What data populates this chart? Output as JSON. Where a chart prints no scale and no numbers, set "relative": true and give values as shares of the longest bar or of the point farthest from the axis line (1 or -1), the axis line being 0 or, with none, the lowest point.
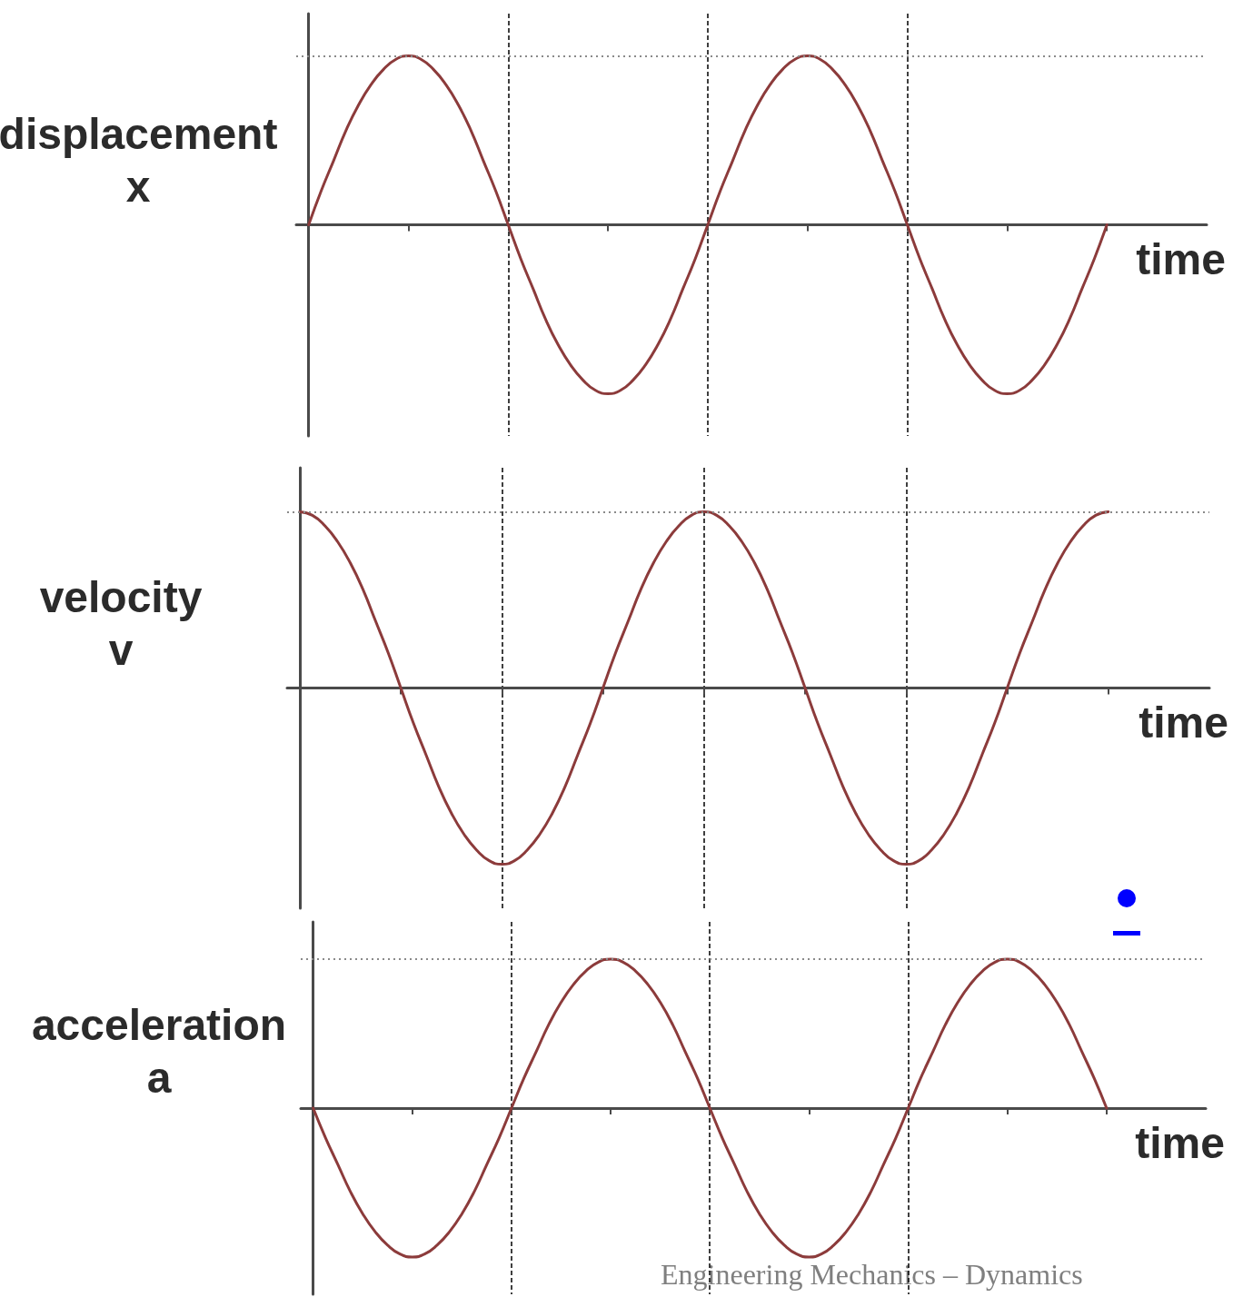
{
  "chart_data": [
    {
      "type": "line",
      "relative": true,
      "tick_labels": false,
      "grid": "x",
      "xlabel": "time",
      "ylabel": "displacement\nx",
      "categories": [
        null,
        null,
        null,
        null,
        null,
        null,
        null,
        null,
        null,
        null,
        null,
        null,
        null,
        null,
        null,
        null,
        null,
        null,
        null,
        null,
        null,
        null,
        null,
        null,
        null,
        null,
        null,
        null,
        null,
        null,
        null,
        null,
        null,
        null,
        null,
        null,
        null,
        null,
        null,
        null,
        null,
        null,
        null,
        null,
        null,
        null,
        null,
        null,
        null,
        null,
        null,
        null,
        null,
        null,
        null,
        null,
        null,
        null,
        null,
        null,
        null,
        null,
        null,
        null,
        null,
        null,
        null,
        null,
        null,
        null,
        null,
        null,
        null,
        null
      ],
      "series": [
        {
          "color": "#8c3b3b",
          "values": [
            null,
            0,
            0.2,
            0.38,
            0.56,
            0.71,
            0.83,
            0.92,
            0.98,
            1,
            0.98,
            0.92,
            0.83,
            0.71,
            0.56,
            0.38,
            0.2,
            0,
            -0.2,
            -0.38,
            -0.56,
            -0.71,
            -0.83,
            -0.92,
            -0.98,
            -1,
            -0.98,
            -0.92,
            -0.83,
            -0.71,
            -0.56,
            -0.38,
            -0.2,
            0,
            0.2,
            0.38,
            0.56,
            0.71,
            0.83,
            0.92,
            0.98,
            1,
            0.98,
            0.92,
            0.83,
            0.71,
            0.56,
            0.38,
            0.2,
            0,
            -0.2,
            -0.38,
            -0.56,
            -0.71,
            -0.83,
            -0.92,
            -0.98,
            -1,
            -0.98,
            -0.92,
            -0.83,
            -0.71,
            -0.56,
            -0.38,
            -0.2,
            0,
            null,
            null,
            null,
            null,
            null,
            null,
            null,
            null
          ]
        }
      ],
      "ref_lines": [
        {
          "axis": "y",
          "value": 1,
          "color": "#8a8a8a",
          "line_style": "dotted"
        }
      ]
    },
    {
      "type": "line",
      "relative": true,
      "tick_labels": false,
      "grid": "x",
      "xlabel": "time",
      "ylabel": "velocity\nv",
      "categories": [
        null,
        null,
        null,
        null,
        null,
        null,
        null,
        null,
        null,
        null,
        null,
        null,
        null,
        null,
        null,
        null,
        null,
        null,
        null,
        null,
        null,
        null,
        null,
        null,
        null,
        null,
        null,
        null,
        null,
        null,
        null,
        null,
        null,
        null,
        null,
        null,
        null,
        null,
        null,
        null,
        null,
        null,
        null,
        null,
        null,
        null,
        null,
        null,
        null,
        null,
        null,
        null,
        null,
        null,
        null,
        null,
        null,
        null,
        null,
        null,
        null,
        null,
        null,
        null,
        null,
        null,
        null,
        null,
        null,
        null,
        null,
        null,
        null,
        null
      ],
      "series": [
        {
          "color": "#8c3b3b",
          "values": [
            null,
            1,
            0.98,
            0.92,
            0.83,
            0.71,
            0.56,
            0.38,
            0.2,
            0,
            -0.2,
            -0.38,
            -0.56,
            -0.71,
            -0.83,
            -0.92,
            -0.98,
            -1,
            -0.98,
            -0.92,
            -0.83,
            -0.71,
            -0.56,
            -0.38,
            -0.2,
            0,
            0.2,
            0.38,
            0.56,
            0.71,
            0.83,
            0.92,
            0.98,
            1,
            0.98,
            0.92,
            0.83,
            0.71,
            0.56,
            0.38,
            0.2,
            0,
            -0.2,
            -0.38,
            -0.56,
            -0.71,
            -0.83,
            -0.92,
            -0.98,
            -1,
            -0.98,
            -0.92,
            -0.83,
            -0.71,
            -0.56,
            -0.38,
            -0.2,
            0,
            0.2,
            0.38,
            0.56,
            0.71,
            0.83,
            0.92,
            0.98,
            1,
            null,
            null,
            null,
            null,
            null,
            null,
            null,
            null
          ]
        }
      ],
      "ref_lines": [
        {
          "axis": "y",
          "value": 1,
          "color": "#8a8a8a",
          "line_style": "dotted"
        }
      ]
    },
    {
      "type": "line",
      "relative": true,
      "tick_labels": false,
      "grid": "x",
      "xlabel": "time",
      "ylabel": "acceleration\na",
      "annotations": [
        "Engineering Mechanics – Dynamics"
      ],
      "categories": [
        null,
        null,
        null,
        null,
        null,
        null,
        null,
        null,
        null,
        null,
        null,
        null,
        null,
        null,
        null,
        null,
        null,
        null,
        null,
        null,
        null,
        null,
        null,
        null,
        null,
        null,
        null,
        null,
        null,
        null,
        null,
        null,
        null,
        null,
        null,
        null,
        null,
        null,
        null,
        null,
        null,
        null,
        null,
        null,
        null,
        null,
        null,
        null,
        null,
        null,
        null,
        null,
        null,
        null,
        null,
        null,
        null,
        null,
        null,
        null,
        null,
        null,
        null,
        null,
        null,
        null,
        null,
        null,
        null,
        null,
        null,
        null,
        null,
        null
      ],
      "series": [
        {
          "color": "#8c3b3b",
          "values": [
            null,
            0,
            -0.2,
            -0.38,
            -0.56,
            -0.71,
            -0.83,
            -0.92,
            -0.98,
            -1,
            -0.98,
            -0.92,
            -0.83,
            -0.71,
            -0.56,
            -0.38,
            -0.2,
            0,
            0.2,
            0.38,
            0.56,
            0.71,
            0.83,
            0.92,
            0.98,
            1,
            0.98,
            0.92,
            0.83,
            0.71,
            0.56,
            0.38,
            0.2,
            0,
            -0.2,
            -0.38,
            -0.56,
            -0.71,
            -0.83,
            -0.92,
            -0.98,
            -1,
            -0.98,
            -0.92,
            -0.83,
            -0.71,
            -0.56,
            -0.38,
            -0.2,
            0,
            0.2,
            0.38,
            0.56,
            0.71,
            0.83,
            0.92,
            0.98,
            1,
            0.98,
            0.92,
            0.83,
            0.71,
            0.56,
            0.38,
            0.2,
            0,
            null,
            null,
            null,
            null,
            null,
            null,
            null,
            null
          ]
        }
      ],
      "ref_lines": [
        {
          "axis": "y",
          "value": 1,
          "color": "#8a8a8a",
          "line_style": "dotted"
        }
      ]
    }
  ]
}
